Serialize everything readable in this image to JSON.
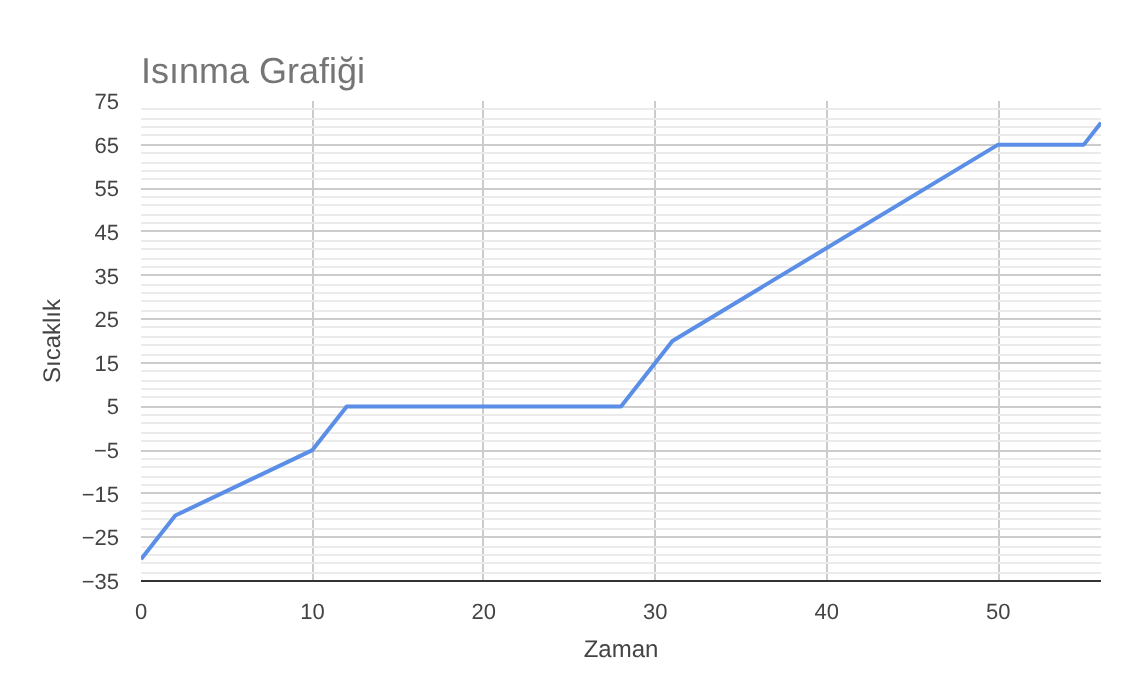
{
  "chart_data": {
    "type": "line",
    "title": "Isınma Grafiği",
    "xlabel": "Zaman",
    "ylabel": "Sıcaklık",
    "x": [
      0,
      2,
      10,
      12,
      28,
      31,
      50,
      55,
      56
    ],
    "series": [
      {
        "color": "#5b8ee6",
        "values": [
          -30,
          -20,
          -5,
          5,
          5,
          20,
          65,
          65,
          70
        ]
      }
    ],
    "xlim": [
      0,
      56
    ],
    "xticks": [
      0,
      10,
      20,
      30,
      40,
      50
    ],
    "ylim": [
      -35,
      75
    ],
    "yticks": [
      -35,
      -25,
      -15,
      -5,
      5,
      15,
      25,
      35,
      45,
      55,
      65,
      75
    ],
    "grid": true,
    "marker": "none",
    "line_style": "solid"
  }
}
